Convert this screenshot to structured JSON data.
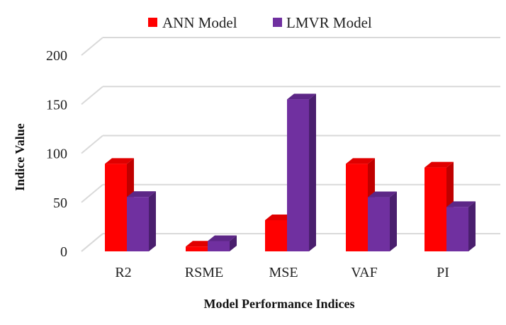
{
  "chart_data": {
    "type": "bar",
    "title": "",
    "xlabel": "Model Performance Indices",
    "ylabel": "Indice Value",
    "categories": [
      "R2",
      "RSME",
      "MSE",
      "VAF",
      "PI"
    ],
    "series": [
      {
        "name": "ANN Model",
        "values": [
          89.3,
          4.9,
          31.8,
          89.3,
          85.5
        ],
        "color": "#ff0000",
        "side_color": "#c00000",
        "top_color": "#e00000"
      },
      {
        "name": "LMVR Model",
        "values": [
          55.5,
          10.5,
          155.0,
          55.2,
          45.2
        ],
        "color": "#7030a0",
        "side_color": "#4a1f6e",
        "top_color": "#5d2787"
      }
    ],
    "ylim": [
      0,
      200
    ],
    "yticks": [
      "0",
      "50",
      "100",
      "150",
      "200"
    ],
    "grid": true,
    "legend": "top",
    "style": "3d-column"
  }
}
